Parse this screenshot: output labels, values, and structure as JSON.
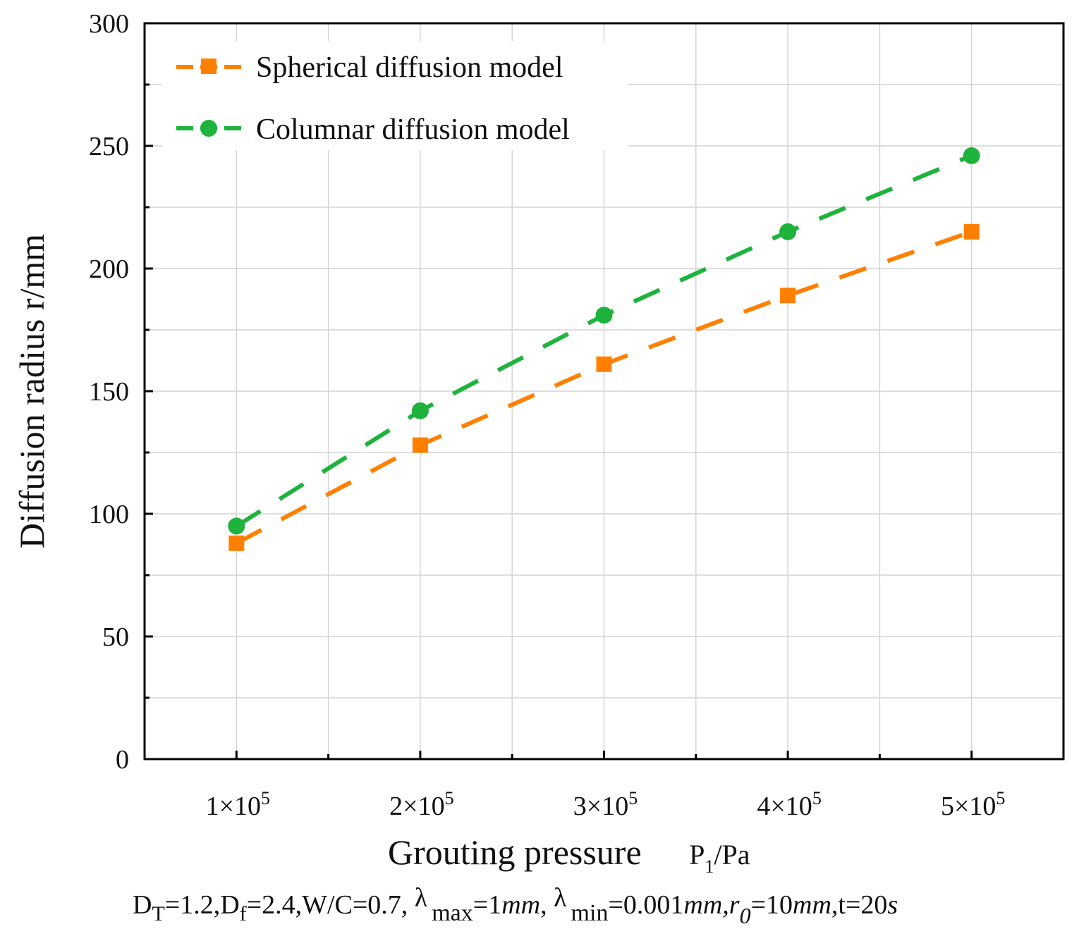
{
  "chart_data": {
    "type": "line",
    "title": "",
    "xlabel": "Grouting pressure",
    "xlabel_unit": "P",
    "xlabel_unit_sub": "1",
    "xlabel_unit_tail": "/Pa",
    "ylabel": "Diffusion radius  r/mm",
    "x": [
      100000,
      200000,
      300000,
      400000,
      500000
    ],
    "x_tick_labels": [
      {
        "mant": "1",
        "sep": "×10",
        "exp": "5"
      },
      {
        "mant": "2",
        "sep": "×10",
        "exp": "5"
      },
      {
        "mant": "3",
        "sep": "×10",
        "exp": "5"
      },
      {
        "mant": "4",
        "sep": "×10",
        "exp": "5"
      },
      {
        "mant": "5",
        "sep": "×10",
        "exp": "5"
      }
    ],
    "xlim": [
      50000,
      550000
    ],
    "ylim": [
      0,
      300
    ],
    "y_ticks": [
      0,
      50,
      100,
      150,
      200,
      250,
      300
    ],
    "y_minor_ticks": [
      25,
      75,
      125,
      175,
      225,
      275
    ],
    "x_minor_ticks": [
      150000,
      250000,
      350000,
      450000
    ],
    "grid": true,
    "legend_position": "top-left",
    "series": [
      {
        "name": "Spherical diffusion model",
        "color": "#FF8000",
        "marker": "square",
        "line_style": "dashed",
        "values": [
          88,
          128,
          161,
          189,
          215
        ]
      },
      {
        "name": "Columnar diffusion model",
        "color": "#1DB33C",
        "marker": "circle",
        "line_style": "dashed",
        "values": [
          95,
          142,
          181,
          215,
          246
        ]
      }
    ],
    "footnote": {
      "part1": "D",
      "sub1": "T",
      "part2": "=1.2,D",
      "sub2": "f",
      "part3": "=2.4,W/C=0.7, ",
      "lambda1": "λ",
      "sub3": "max",
      "part4": "=1",
      "it1": "mm",
      "part5": ", ",
      "lambda2": "λ",
      "sub4": "min",
      "part6": "=0.001",
      "it2": "mm,r",
      "sub5": "0",
      "part7": "=10",
      "it3": "mm",
      "part8": ",t=20",
      "it4": "s"
    }
  }
}
